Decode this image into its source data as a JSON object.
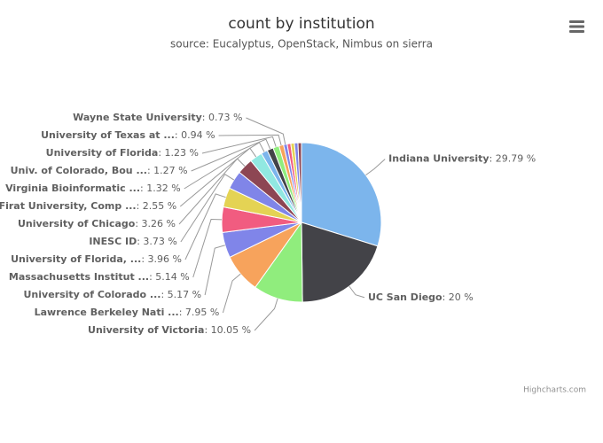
{
  "chart_data": {
    "type": "pie",
    "title": "count by institution",
    "subtitle": "source: Eucalyptus, OpenStack, Nimbus on sierra",
    "credits": "Highcharts.com",
    "categories": [
      "Indiana University",
      "UC San Diego",
      "University of Victoria",
      "Lawrence Berkeley Nati ...",
      "University of Colorado ...",
      "Massachusetts Institut ...",
      "University of Florida, ...",
      "INESC ID",
      "University of Chicago",
      "Firat University, Comp ...",
      "Virginia Bioinformatic ...",
      "Univ. of Colorado, Bou ...",
      "University of Florida",
      "University of Texas at ...",
      "Wayne State University",
      null,
      null,
      null,
      null
    ],
    "values": [
      29.79,
      20,
      10.05,
      7.95,
      5.17,
      5.14,
      3.96,
      3.73,
      3.26,
      2.55,
      1.32,
      1.27,
      1.23,
      0.94,
      0.73,
      0.73,
      0.73,
      0.72,
      0.71
    ],
    "value_labels": [
      ": 29.79 %",
      ": 20 %",
      ": 10.05 %",
      ": 7.95 %",
      ": 5.17 %",
      ": 5.14 %",
      ": 3.96 %",
      ": 3.73 %",
      ": 3.26 %",
      ": 2.55 %",
      ": 1.32 %",
      ": 1.27 %",
      ": 1.23 %",
      ": 0.94 %",
      ": 0.73 %",
      null,
      null,
      null,
      null
    ],
    "colors": [
      "#7cb5ec",
      "#434348",
      "#90ed7d",
      "#f7a35c",
      "#8085e9",
      "#f15c80",
      "#e4d354",
      "#8085e8",
      "#8d4653",
      "#91e8e1",
      "#7cb5ec",
      "#434348",
      "#90ed7d",
      "#f7a35c",
      "#8085e9",
      "#f15c80",
      "#e4d354",
      "#8085e8",
      "#8d4653"
    ]
  }
}
